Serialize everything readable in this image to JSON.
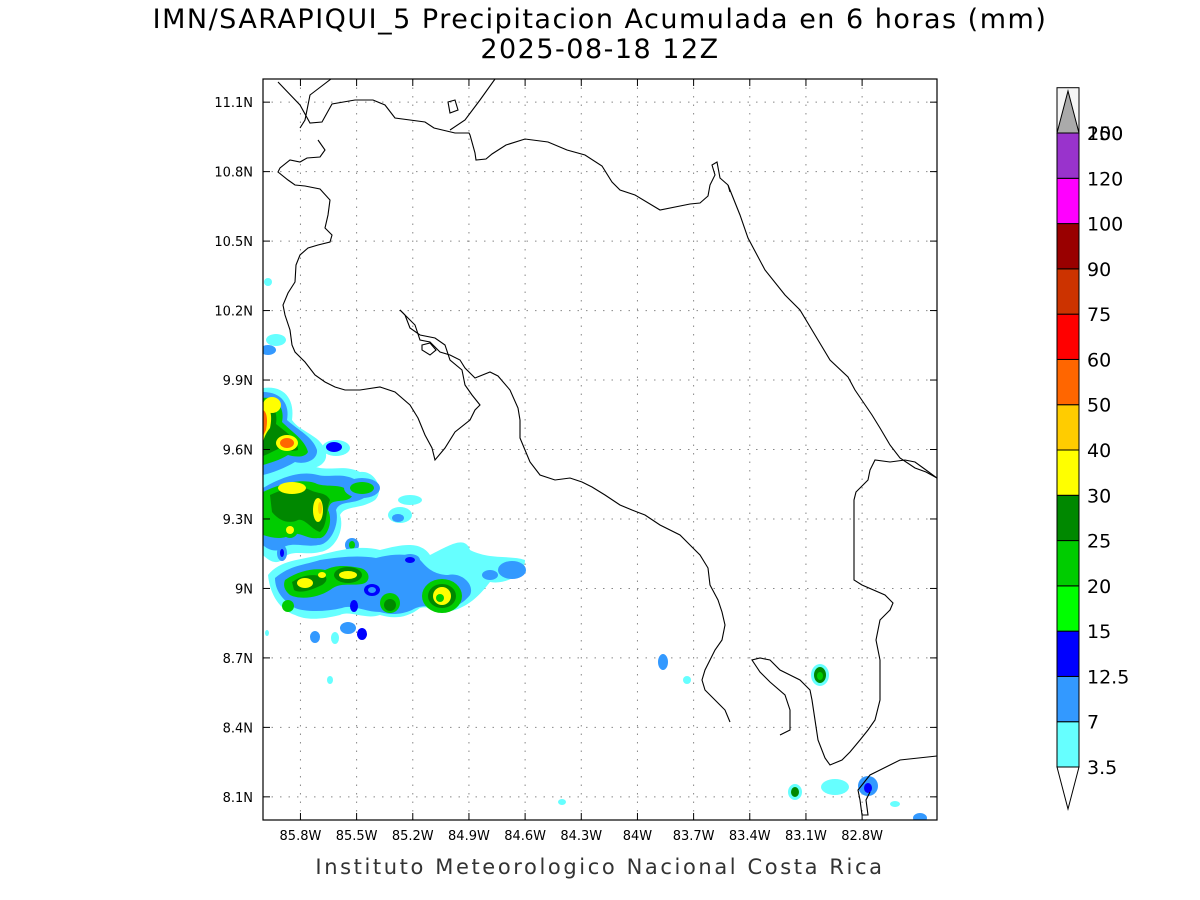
{
  "title": "IMN/SARAPIQUI_5 Precipitacion Acumulada en 6 horas (mm)",
  "subtitle": "2025-08-18 12Z",
  "footer": "Instituto Meteorologico Nacional Costa Rica",
  "map": {
    "lon_range": [
      -86.0,
      -82.4
    ],
    "lat_range": [
      8.0,
      11.2
    ],
    "lon_ticks": [
      {
        "value": -85.8,
        "label": "85.8W"
      },
      {
        "value": -85.5,
        "label": "85.5W"
      },
      {
        "value": -85.2,
        "label": "85.2W"
      },
      {
        "value": -84.9,
        "label": "84.9W"
      },
      {
        "value": -84.6,
        "label": "84.6W"
      },
      {
        "value": -84.3,
        "label": "84.3W"
      },
      {
        "value": -84.0,
        "label": "84W"
      },
      {
        "value": -83.7,
        "label": "83.7W"
      },
      {
        "value": -83.4,
        "label": "83.4W"
      },
      {
        "value": -83.1,
        "label": "83.1W"
      },
      {
        "value": -82.8,
        "label": "82.8W"
      }
    ],
    "lat_ticks": [
      {
        "value": 8.1,
        "label": "8.1N"
      },
      {
        "value": 8.4,
        "label": "8.4N"
      },
      {
        "value": 8.7,
        "label": "8.7N"
      },
      {
        "value": 9.0,
        "label": "9N"
      },
      {
        "value": 9.3,
        "label": "9.3N"
      },
      {
        "value": 9.6,
        "label": "9.6N"
      },
      {
        "value": 9.9,
        "label": "9.9N"
      },
      {
        "value": 10.2,
        "label": "10.2N"
      },
      {
        "value": 10.5,
        "label": "10.5N"
      },
      {
        "value": 10.8,
        "label": "10.8N"
      },
      {
        "value": 11.1,
        "label": "11.1N"
      }
    ],
    "grid": true,
    "grid_style": "dotted"
  },
  "legend": {
    "title": "",
    "position": "right",
    "levels": [
      {
        "label": "3.5",
        "color": "#66ffff"
      },
      {
        "label": "7",
        "color": "#3399ff"
      },
      {
        "label": "12.5",
        "color": "#0000ff"
      },
      {
        "label": "15",
        "color": "#00ff00"
      },
      {
        "label": "20",
        "color": "#00cc00"
      },
      {
        "label": "25",
        "color": "#008800"
      },
      {
        "label": "30",
        "color": "#ffff00"
      },
      {
        "label": "40",
        "color": "#ffcc00"
      },
      {
        "label": "50",
        "color": "#ff6600"
      },
      {
        "label": "60",
        "color": "#ff0000"
      },
      {
        "label": "75",
        "color": "#cc3300"
      },
      {
        "label": "90",
        "color": "#990000"
      },
      {
        "label": "100",
        "color": "#ff00ff"
      },
      {
        "label": "120",
        "color": "#9933cc"
      },
      {
        "label": "150",
        "color": "#f5f5f5"
      },
      {
        "label": "200",
        "color": "#aaaaaa"
      }
    ]
  },
  "precip_cells": [
    {
      "lon": -85.95,
      "lat": 9.82,
      "peak": "60"
    },
    {
      "lon": -85.85,
      "lat": 9.68,
      "peak": "50"
    },
    {
      "lon": -85.62,
      "lat": 9.45,
      "peak": "30"
    },
    {
      "lon": -85.75,
      "lat": 9.05,
      "peak": "30"
    },
    {
      "lon": -84.95,
      "lat": 9.0,
      "peak": "30"
    },
    {
      "lon": -83.1,
      "lat": 8.65,
      "peak": "20"
    }
  ]
}
